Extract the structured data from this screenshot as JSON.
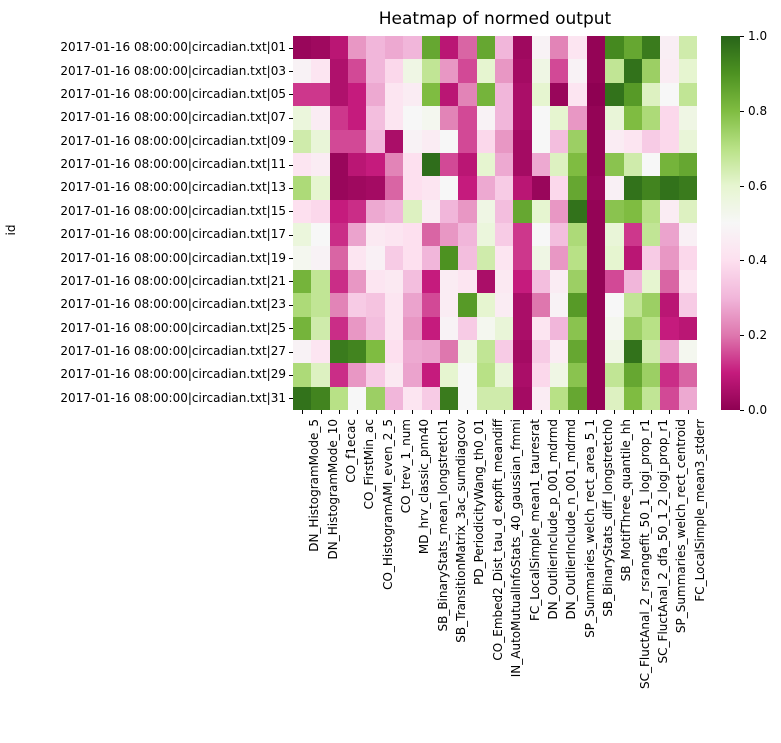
{
  "chart_data": {
    "type": "heatmap",
    "title": "Heatmap of normed output",
    "ylabel": "id",
    "xlabel": "",
    "legend_position": "right-colorbar",
    "grid": false,
    "rows": [
      "2017-01-16 08:00:00|circadian.txt|01",
      "2017-01-16 08:00:00|circadian.txt|03",
      "2017-01-16 08:00:00|circadian.txt|05",
      "2017-01-16 08:00:00|circadian.txt|07",
      "2017-01-16 08:00:00|circadian.txt|09",
      "2017-01-16 08:00:00|circadian.txt|11",
      "2017-01-16 08:00:00|circadian.txt|13",
      "2017-01-16 08:00:00|circadian.txt|15",
      "2017-01-16 08:00:00|circadian.txt|17",
      "2017-01-16 08:00:00|circadian.txt|19",
      "2017-01-16 08:00:00|circadian.txt|21",
      "2017-01-16 08:00:00|circadian.txt|23",
      "2017-01-16 08:00:00|circadian.txt|25",
      "2017-01-16 08:00:00|circadian.txt|27",
      "2017-01-16 08:00:00|circadian.txt|29",
      "2017-01-16 08:00:00|circadian.txt|31"
    ],
    "columns": [
      "DN_HistogramMode_5",
      "DN_HistogramMode_10",
      "CO_f1ecac",
      "CO_FirstMin_ac",
      "CO_HistogramAMI_even_2_5",
      "CO_trev_1_num",
      "MD_hrv_classic_pnn40",
      "SB_BinaryStats_mean_longstretch1",
      "SB_TransitionMatrix_3ac_sumdiagcov",
      "PD_PeriodicityWang_th0_01",
      "CO_Embed2_Dist_tau_d_expfit_meandiff",
      "IN_AutoMutualInfoStats_40_gaussian_fmmi",
      "FC_LocalSimple_mean1_tauresrat",
      "DN_OutlierInclude_p_001_mdrmd",
      "DN_OutlierInclude_n_001_mdrmd",
      "SP_Summaries_welch_rect_area_5_1",
      "SB_BinaryStats_diff_longstretch0",
      "SB_MotifThree_quantile_hh",
      "SC_FluctAnal_2_rsrangefit_50_1_logi_prop_r1",
      "SC_FluctAnal_2_dfa_50_1_2_logi_prop_r1",
      "SP_Summaries_welch_rect_centroid",
      "FC_LocalSimple_mean3_stderr"
    ],
    "values": [
      [
        0.02,
        0.03,
        0.08,
        0.25,
        0.3,
        0.28,
        0.3,
        0.85,
        0.08,
        0.18,
        0.85,
        0.3,
        0.03,
        0.48,
        0.22,
        0.42,
        0.01,
        0.92,
        0.85,
        0.95,
        0.46,
        0.65
      ],
      [
        0.48,
        0.42,
        0.06,
        0.15,
        0.3,
        0.38,
        0.55,
        0.68,
        0.25,
        0.15,
        0.6,
        0.25,
        0.04,
        0.55,
        0.15,
        0.48,
        0.01,
        0.68,
        0.97,
        0.75,
        0.45,
        0.6
      ],
      [
        0.13,
        0.13,
        0.06,
        0.1,
        0.28,
        0.42,
        0.45,
        0.8,
        0.08,
        0.22,
        0.82,
        0.3,
        0.05,
        0.6,
        0.02,
        0.42,
        0.0,
        0.97,
        0.88,
        0.62,
        0.5,
        0.68
      ],
      [
        0.57,
        0.45,
        0.13,
        0.1,
        0.32,
        0.42,
        0.5,
        0.52,
        0.22,
        0.15,
        0.48,
        0.3,
        0.05,
        0.5,
        0.6,
        0.25,
        0.01,
        0.58,
        0.8,
        0.72,
        0.38,
        0.55
      ],
      [
        0.65,
        0.58,
        0.15,
        0.15,
        0.3,
        0.05,
        0.48,
        0.45,
        0.5,
        0.15,
        0.38,
        0.25,
        0.04,
        0.5,
        0.32,
        0.75,
        0.01,
        0.45,
        0.42,
        0.35,
        0.38,
        0.58
      ],
      [
        0.42,
        0.45,
        0.02,
        0.08,
        0.1,
        0.22,
        0.4,
        0.98,
        0.15,
        0.08,
        0.6,
        0.28,
        0.04,
        0.28,
        0.62,
        0.8,
        0.01,
        0.78,
        0.65,
        0.5,
        0.82,
        0.85
      ],
      [
        0.72,
        0.6,
        0.02,
        0.03,
        0.04,
        0.18,
        0.4,
        0.42,
        0.5,
        0.1,
        0.28,
        0.35,
        0.08,
        0.02,
        0.38,
        0.85,
        0.02,
        0.47,
        0.97,
        0.93,
        0.97,
        0.95
      ],
      [
        0.4,
        0.38,
        0.1,
        0.12,
        0.28,
        0.3,
        0.62,
        0.45,
        0.3,
        0.25,
        0.55,
        0.32,
        0.85,
        0.6,
        0.25,
        0.97,
        0.01,
        0.78,
        0.8,
        0.7,
        0.45,
        0.62
      ],
      [
        0.57,
        0.5,
        0.12,
        0.27,
        0.44,
        0.42,
        0.4,
        0.18,
        0.25,
        0.3,
        0.57,
        0.35,
        0.13,
        0.5,
        0.32,
        0.72,
        0.01,
        0.58,
        0.13,
        0.68,
        0.27,
        0.47
      ],
      [
        0.52,
        0.48,
        0.18,
        0.42,
        0.47,
        0.35,
        0.4,
        0.3,
        0.9,
        0.32,
        0.65,
        0.42,
        0.13,
        0.55,
        0.25,
        0.7,
        0.01,
        0.6,
        0.08,
        0.35,
        0.25,
        0.38
      ],
      [
        0.82,
        0.68,
        0.12,
        0.25,
        0.42,
        0.44,
        0.32,
        0.1,
        0.45,
        0.42,
        0.05,
        0.44,
        0.1,
        0.32,
        0.45,
        0.75,
        0.01,
        0.15,
        0.3,
        0.6,
        0.18,
        0.42
      ],
      [
        0.72,
        0.68,
        0.22,
        0.35,
        0.33,
        0.42,
        0.27,
        0.15,
        0.45,
        0.88,
        0.6,
        0.45,
        0.05,
        0.2,
        0.48,
        0.88,
        0.01,
        0.5,
        0.68,
        0.75,
        0.08,
        0.35
      ],
      [
        0.82,
        0.65,
        0.12,
        0.25,
        0.32,
        0.42,
        0.25,
        0.1,
        0.48,
        0.35,
        0.52,
        0.58,
        0.05,
        0.42,
        0.3,
        0.78,
        0.01,
        0.52,
        0.75,
        0.7,
        0.1,
        0.08
      ],
      [
        0.48,
        0.42,
        0.95,
        0.93,
        0.8,
        0.4,
        0.28,
        0.27,
        0.2,
        0.55,
        0.68,
        0.35,
        0.04,
        0.35,
        0.45,
        0.85,
        0.01,
        0.55,
        0.97,
        0.65,
        0.28,
        0.52
      ],
      [
        0.72,
        0.62,
        0.12,
        0.25,
        0.35,
        0.44,
        0.27,
        0.1,
        0.6,
        0.5,
        0.7,
        0.58,
        0.05,
        0.38,
        0.55,
        0.78,
        0.01,
        0.68,
        0.85,
        0.75,
        0.12,
        0.18
      ],
      [
        0.97,
        0.93,
        0.7,
        0.5,
        0.75,
        0.3,
        0.42,
        0.35,
        0.95,
        0.5,
        0.65,
        0.65,
        0.04,
        0.45,
        0.7,
        0.85,
        0.01,
        0.62,
        0.8,
        0.68,
        0.15,
        0.28
      ]
    ],
    "colorbar": {
      "min": 0.0,
      "max": 1.0,
      "tick_values": [
        0.0,
        0.2,
        0.4,
        0.6,
        0.8,
        1.0
      ],
      "tick_labels": [
        "0.0",
        "0.2",
        "0.4",
        "0.6",
        "0.8",
        "1.0"
      ]
    },
    "colormap": {
      "name": "PiYG",
      "anchors": [
        "#8e0152",
        "#c51b7d",
        "#de77ae",
        "#f1b6da",
        "#fde0ef",
        "#f7f7f7",
        "#e6f5d0",
        "#b8e186",
        "#7fbc41",
        "#4d9221",
        "#276419"
      ]
    }
  }
}
